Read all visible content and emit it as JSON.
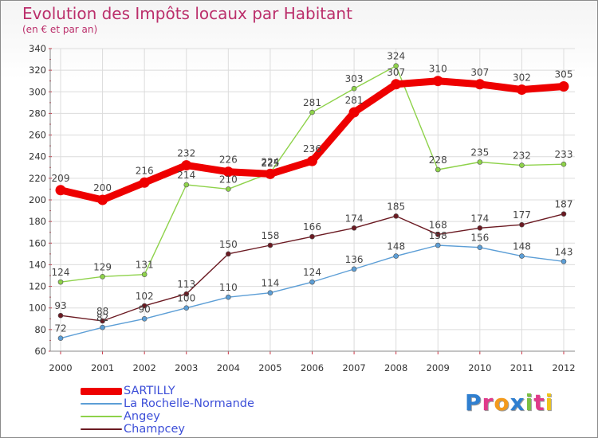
{
  "title": "Evolution des Impôts locaux par Habitant",
  "subtitle": "(en € et par an)",
  "brand": {
    "text": "Proxiti",
    "letter_colors": [
      "#2f7fd0",
      "#e03a8a",
      "#f39a1c",
      "#2f7fd0",
      "#7bc043",
      "#e03a8a",
      "#f0c419"
    ]
  },
  "chart_data": {
    "type": "line",
    "categories": [
      "2000",
      "2001",
      "2002",
      "2003",
      "2004",
      "2005",
      "2006",
      "2007",
      "2008",
      "2009",
      "2010",
      "2011",
      "2012"
    ],
    "ylim": [
      60,
      340
    ],
    "yticks": [
      "60",
      "80",
      "100",
      "120",
      "140",
      "160",
      "180",
      "200",
      "220",
      "240",
      "260",
      "280",
      "300",
      "320",
      "340"
    ],
    "grid": true,
    "legend_position": "bottom-left",
    "series": [
      {
        "name": "SARTILLY",
        "color": "#ee0000",
        "emphasis": true,
        "values": [
          209,
          200,
          216,
          232,
          226,
          224,
          236,
          281,
          307,
          310,
          307,
          302,
          305
        ],
        "labels": [
          "209",
          "200",
          "216",
          "232",
          "226",
          "224",
          "236",
          "281",
          "307",
          "310",
          "307",
          "302",
          "305"
        ]
      },
      {
        "name": "La Rochelle-Normande",
        "color": "#5c9ed6",
        "values": [
          72,
          82,
          90,
          100,
          110,
          114,
          124,
          136,
          148,
          158,
          156,
          148,
          143
        ],
        "labels": [
          "72",
          "82",
          "90",
          "100",
          "110",
          "114",
          "124",
          "136",
          "148",
          "158",
          "156",
          "148",
          "143"
        ]
      },
      {
        "name": "Angey",
        "color": "#8ed24a",
        "values": [
          124,
          129,
          131,
          214,
          210,
          225,
          281,
          303,
          324,
          228,
          235,
          232,
          233
        ],
        "labels": [
          "124",
          "129",
          "131",
          "214",
          "210",
          "225",
          "281",
          "303",
          "324",
          "228",
          "235",
          "232",
          "233"
        ]
      },
      {
        "name": "Champcey",
        "color": "#6b1a22",
        "values": [
          93,
          88,
          102,
          113,
          150,
          158,
          166,
          174,
          185,
          168,
          174,
          177,
          187
        ],
        "labels": [
          "93",
          "88",
          "102",
          "113",
          "150",
          "158",
          "166",
          "174",
          "185",
          "168",
          "174",
          "177",
          "187"
        ]
      }
    ]
  }
}
